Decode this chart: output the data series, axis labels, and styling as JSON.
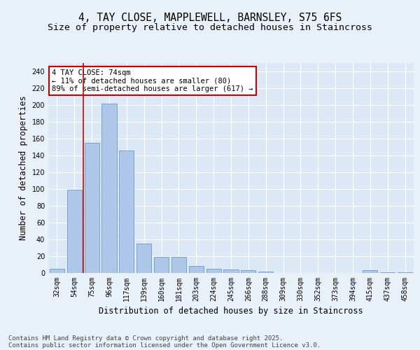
{
  "title_line1": "4, TAY CLOSE, MAPPLEWELL, BARNSLEY, S75 6FS",
  "title_line2": "Size of property relative to detached houses in Staincross",
  "xlabel": "Distribution of detached houses by size in Staincross",
  "ylabel": "Number of detached properties",
  "categories": [
    "32sqm",
    "54sqm",
    "75sqm",
    "96sqm",
    "117sqm",
    "139sqm",
    "160sqm",
    "181sqm",
    "203sqm",
    "224sqm",
    "245sqm",
    "266sqm",
    "288sqm",
    "309sqm",
    "330sqm",
    "352sqm",
    "373sqm",
    "394sqm",
    "415sqm",
    "437sqm",
    "458sqm"
  ],
  "values": [
    5,
    99,
    155,
    202,
    146,
    35,
    19,
    19,
    8,
    5,
    4,
    3,
    2,
    0,
    0,
    0,
    0,
    0,
    3,
    1,
    1
  ],
  "bar_color": "#aec6e8",
  "bar_edge_color": "#5a8fc0",
  "vline_x": 1.5,
  "annotation_text": "4 TAY CLOSE: 74sqm\n← 11% of detached houses are smaller (80)\n89% of semi-detached houses are larger (617) →",
  "annotation_box_color": "#ffffff",
  "annotation_box_edge_color": "#cc0000",
  "vline_color": "#cc0000",
  "ylim": [
    0,
    250
  ],
  "yticks": [
    0,
    20,
    40,
    60,
    80,
    100,
    120,
    140,
    160,
    180,
    200,
    220,
    240
  ],
  "background_color": "#e8f0f8",
  "plot_bg_color": "#dce8f5",
  "grid_color": "#ffffff",
  "footer_line1": "Contains HM Land Registry data © Crown copyright and database right 2025.",
  "footer_line2": "Contains public sector information licensed under the Open Government Licence v3.0.",
  "title_fontsize": 10.5,
  "subtitle_fontsize": 9.5,
  "axis_label_fontsize": 8.5,
  "tick_fontsize": 7,
  "annotation_fontsize": 7.5,
  "footer_fontsize": 6.5
}
